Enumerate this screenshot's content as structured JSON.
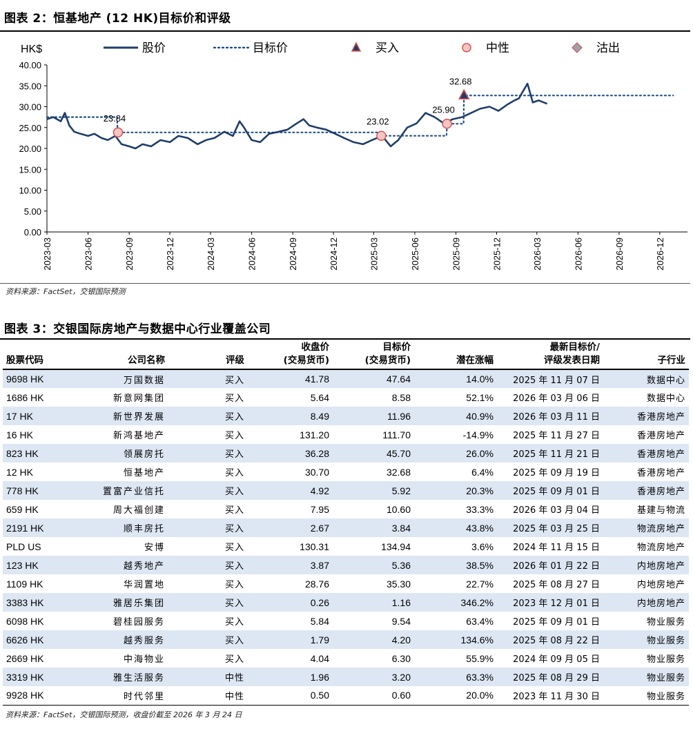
{
  "figure2": {
    "title": "图表 2：恒基地产 (12 HK)目标价和评级",
    "source": "资料来源：FactSet，交银国际预测"
  },
  "figure3": {
    "title": "图表 3：交银国际房地产与数据中心行业覆盖公司",
    "source": "资料来源：FactSet，交银国际预测，收盘价截至 2026 年 3 月 24 日"
  },
  "chart_data": {
    "type": "line",
    "ylabel": "HK$",
    "ylim": [
      0,
      40
    ],
    "yticks": [
      "40.00",
      "35.00",
      "30.00",
      "25.00",
      "20.00",
      "15.00",
      "10.00",
      "5.00",
      "0.00"
    ],
    "xticks": [
      "2023-03",
      "2023-06",
      "2023-09",
      "2023-12",
      "2024-03",
      "2024-06",
      "2024-09",
      "2024-12",
      "2025-03",
      "2025-06",
      "2025-09",
      "2025-12",
      "2026-03",
      "2026-06",
      "2026-09",
      "2026-12"
    ],
    "legend": [
      {
        "name": "股价",
        "style": "solid-line",
        "color": "#1f3d6b"
      },
      {
        "name": "目标价",
        "style": "dotted-line",
        "color": "#1f4f8f"
      },
      {
        "name": "买入",
        "style": "triangle-marker",
        "color": "#1f3d6b"
      },
      {
        "name": "中性",
        "style": "circle-marker",
        "color": "#f3c6c6"
      },
      {
        "name": "沽出",
        "style": "diamond-marker",
        "color": "#9aa3ad"
      }
    ],
    "colors": {
      "price": "#1f3d6b",
      "target": "#1f4f8f",
      "marker_edge": "#d9534f"
    },
    "series": [
      {
        "name": "股价",
        "x": [
          "2023-03-01",
          "2023-03-15",
          "2023-04-01",
          "2023-04-10",
          "2023-04-20",
          "2023-05-01",
          "2023-05-15",
          "2023-06-01",
          "2023-06-15",
          "2023-07-01",
          "2023-07-15",
          "2023-08-01",
          "2023-08-15",
          "2023-09-01",
          "2023-09-15",
          "2023-10-01",
          "2023-10-20",
          "2023-11-10",
          "2023-12-01",
          "2023-12-20",
          "2024-01-10",
          "2024-02-01",
          "2024-02-20",
          "2024-03-10",
          "2024-04-01",
          "2024-04-20",
          "2024-05-05",
          "2024-05-15",
          "2024-06-01",
          "2024-06-20",
          "2024-07-10",
          "2024-08-01",
          "2024-08-20",
          "2024-09-10",
          "2024-09-25",
          "2024-10-08",
          "2024-10-25",
          "2024-11-15",
          "2024-12-05",
          "2024-12-25",
          "2025-01-15",
          "2025-02-05",
          "2025-02-25",
          "2025-03-20",
          "2025-04-08",
          "2025-04-25",
          "2025-05-15",
          "2025-06-05",
          "2025-06-25",
          "2025-07-15",
          "2025-08-05",
          "2025-08-25",
          "2025-09-15",
          "2025-10-05",
          "2025-10-25",
          "2025-11-15",
          "2025-12-05",
          "2025-12-25",
          "2026-01-10",
          "2026-01-20",
          "2026-01-28",
          "2026-02-08",
          "2026-02-20",
          "2026-03-05",
          "2026-03-24"
        ],
        "values": [
          27.0,
          27.5,
          26.5,
          28.5,
          25.5,
          24.0,
          23.5,
          23.0,
          23.5,
          22.5,
          22.0,
          23.0,
          21.0,
          20.5,
          20.0,
          21.0,
          20.5,
          22.0,
          21.5,
          23.0,
          22.5,
          21.0,
          22.0,
          22.5,
          24.0,
          23.0,
          26.5,
          25.0,
          22.0,
          21.5,
          23.5,
          24.0,
          24.5,
          26.0,
          27.0,
          25.5,
          25.0,
          24.5,
          23.5,
          22.5,
          21.5,
          21.0,
          22.0,
          23.0,
          20.5,
          22.0,
          25.0,
          26.0,
          28.5,
          27.5,
          26.0,
          27.0,
          27.5,
          28.5,
          29.5,
          30.0,
          29.0,
          30.5,
          31.5,
          32.0,
          33.5,
          35.5,
          31.0,
          31.5,
          30.7
        ]
      },
      {
        "name": "目标价",
        "x": [
          "2023-03-01",
          "2023-08-05",
          "2023-08-06",
          "2025-03-17",
          "2025-03-18",
          "2025-08-11",
          "2025-08-12",
          "2025-09-18",
          "2025-09-19",
          "2026-12-31"
        ],
        "values": [
          27.5,
          27.5,
          23.84,
          23.84,
          23.02,
          23.02,
          25.9,
          25.9,
          32.68,
          32.68
        ]
      }
    ],
    "markers": [
      {
        "date": "2023-08-07",
        "value": 23.84,
        "rating": "中性",
        "label": "23.84"
      },
      {
        "date": "2025-03-18",
        "value": 23.02,
        "rating": "中性",
        "label": "23.02"
      },
      {
        "date": "2025-08-12",
        "value": 25.9,
        "rating": "中性",
        "label": "25.90"
      },
      {
        "date": "2025-09-19",
        "value": 32.68,
        "rating": "买入",
        "label": "32.68"
      }
    ],
    "grid": false,
    "legend_position": "top"
  },
  "table": {
    "headers": {
      "code": "股票代码",
      "name": "公司名称",
      "rating": "评级",
      "close_line1": "收盘价",
      "close_line2": "(交易货币)",
      "target_line1": "目标价",
      "target_line2": "(交易货币)",
      "upside": "潜在涨幅",
      "date_line1": "最新目标价/",
      "date_line2": "评级发表日期",
      "sector": "子行业"
    },
    "rows": [
      {
        "code": "9698 HK",
        "name": "万国数据",
        "rating": "买入",
        "close": "41.78",
        "target": "47.64",
        "upside": "14.0%",
        "date": "2025 年 11 月 07 日",
        "sector": "数据中心"
      },
      {
        "code": "1686 HK",
        "name": "新意网集团",
        "rating": "买入",
        "close": "5.64",
        "target": "8.58",
        "upside": "52.1%",
        "date": "2026 年 03 月 06 日",
        "sector": "数据中心"
      },
      {
        "code": "17 HK",
        "name": "新世界发展",
        "rating": "买入",
        "close": "8.49",
        "target": "11.96",
        "upside": "40.9%",
        "date": "2026 年 03 月 11 日",
        "sector": "香港房地产"
      },
      {
        "code": "16 HK",
        "name": "新鸿基地产",
        "rating": "买入",
        "close": "131.20",
        "target": "111.70",
        "upside": "-14.9%",
        "date": "2025 年 11 月 27 日",
        "sector": "香港房地产"
      },
      {
        "code": "823 HK",
        "name": "领展房托",
        "rating": "买入",
        "close": "36.28",
        "target": "45.70",
        "upside": "26.0%",
        "date": "2025 年 11 月 21 日",
        "sector": "香港房地产"
      },
      {
        "code": "12 HK",
        "name": "恒基地产",
        "rating": "买入",
        "close": "30.70",
        "target": "32.68",
        "upside": "6.4%",
        "date": "2025 年 09 月 19 日",
        "sector": "香港房地产"
      },
      {
        "code": "778 HK",
        "name": "置富产业信托",
        "rating": "买入",
        "close": "4.92",
        "target": "5.92",
        "upside": "20.3%",
        "date": "2025 年 09 月 01 日",
        "sector": "香港房地产"
      },
      {
        "code": "659 HK",
        "name": "周大福创建",
        "rating": "买入",
        "close": "7.95",
        "target": "10.60",
        "upside": "33.3%",
        "date": "2026 年 03 月 04 日",
        "sector": "基建与物流"
      },
      {
        "code": "2191 HK",
        "name": "顺丰房托",
        "rating": "买入",
        "close": "2.67",
        "target": "3.84",
        "upside": "43.8%",
        "date": "2025 年 03 月 25 日",
        "sector": "物流房地产"
      },
      {
        "code": "PLD US",
        "name": "安博",
        "rating": "买入",
        "close": "130.31",
        "target": "134.94",
        "upside": "3.6%",
        "date": "2024 年 11 月 15 日",
        "sector": "物流房地产"
      },
      {
        "code": "123 HK",
        "name": "越秀地产",
        "rating": "买入",
        "close": "3.87",
        "target": "5.36",
        "upside": "38.5%",
        "date": "2026 年 01 月 22 日",
        "sector": "内地房地产"
      },
      {
        "code": "1109 HK",
        "name": "华润置地",
        "rating": "买入",
        "close": "28.76",
        "target": "35.30",
        "upside": "22.7%",
        "date": "2025 年 08 月 27 日",
        "sector": "内地房地产"
      },
      {
        "code": "3383 HK",
        "name": "雅居乐集团",
        "rating": "买入",
        "close": "0.26",
        "target": "1.16",
        "upside": "346.2%",
        "date": "2023 年 12 月 01 日",
        "sector": "内地房地产"
      },
      {
        "code": "6098 HK",
        "name": "碧桂园服务",
        "rating": "买入",
        "close": "5.84",
        "target": "9.54",
        "upside": "63.4%",
        "date": "2025 年 09 月 01 日",
        "sector": "物业服务"
      },
      {
        "code": "6626 HK",
        "name": "越秀服务",
        "rating": "买入",
        "close": "1.79",
        "target": "4.20",
        "upside": "134.6%",
        "date": "2025 年 08 月 22 日",
        "sector": "物业服务"
      },
      {
        "code": "2669 HK",
        "name": "中海物业",
        "rating": "买入",
        "close": "4.04",
        "target": "6.30",
        "upside": "55.9%",
        "date": "2024 年 09 月 05 日",
        "sector": "物业服务"
      },
      {
        "code": "3319 HK",
        "name": "雅生活服务",
        "rating": "中性",
        "close": "1.96",
        "target": "3.20",
        "upside": "63.3%",
        "date": "2025 年 08 月 29 日",
        "sector": "物业服务"
      },
      {
        "code": "9928 HK",
        "name": "时代邻里",
        "rating": "中性",
        "close": "0.50",
        "target": "0.60",
        "upside": "20.0%",
        "date": "2023 年 11 月 30 日",
        "sector": "物业服务"
      }
    ]
  }
}
